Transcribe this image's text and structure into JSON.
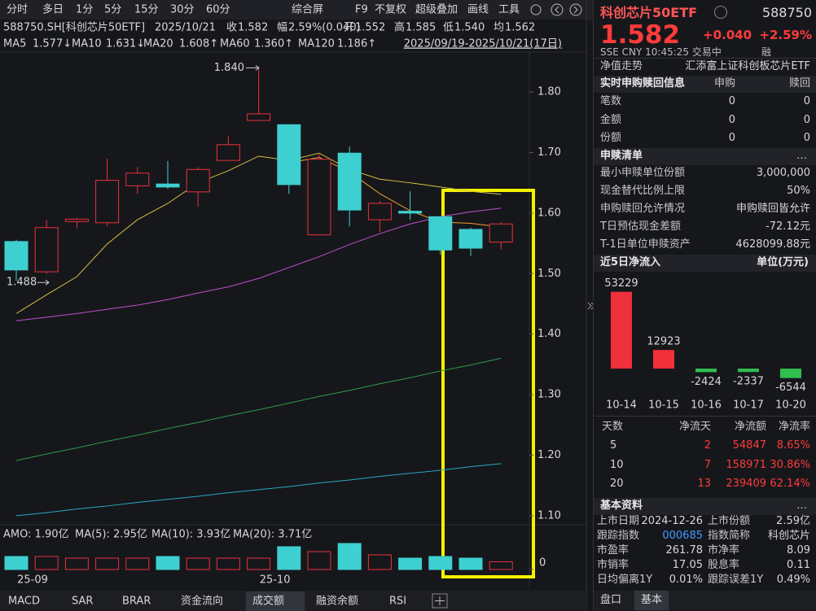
{
  "toolbar": {
    "periods": [
      "分时",
      "多日",
      "1分",
      "5分",
      "15分",
      "30分",
      "60分"
    ],
    "tools": [
      "综合屏",
      "F9",
      "不复权",
      "超级叠加",
      "画线",
      "工具"
    ]
  },
  "quote_line": {
    "symbol": "588750.SH[科创芯片50ETF]",
    "date": "2025/10/21",
    "items": [
      {
        "label": "收",
        "value": "1.582"
      },
      {
        "label": "幅",
        "value": "2.59%(0.040)"
      },
      {
        "label": "开",
        "value": "1.552"
      },
      {
        "label": "高",
        "value": "1.585"
      },
      {
        "label": "低",
        "value": "1.540"
      },
      {
        "label": "均",
        "value": "1.562"
      }
    ]
  },
  "ma_legend": [
    {
      "name": "MA5",
      "value": "1.577↓"
    },
    {
      "name": "MA10",
      "value": "1.631↓"
    },
    {
      "name": "MA20",
      "value": "1.608↑"
    },
    {
      "name": "MA60",
      "value": "1.360↑"
    },
    {
      "name": "MA120",
      "value": "1.186↑"
    }
  ],
  "range": "2025/09/19-2025/10/21(17日)",
  "chart_data": [
    {
      "type": "candlestick",
      "categories": [
        "25-09",
        null,
        null,
        null,
        null,
        null,
        null,
        null,
        "25-10",
        null,
        null,
        null,
        null,
        null,
        null,
        null,
        null
      ],
      "open": [
        1.553,
        1.503,
        1.586,
        1.584,
        1.645,
        1.648,
        1.635,
        1.687,
        1.753,
        1.746,
        1.564,
        1.699,
        1.589,
        1.603,
        1.594,
        1.573,
        1.552
      ],
      "high": [
        1.556,
        1.589,
        1.592,
        1.69,
        1.676,
        1.686,
        1.676,
        1.727,
        1.84,
        1.746,
        1.697,
        1.71,
        1.62,
        1.636,
        1.594,
        1.576,
        1.585
      ],
      "low": [
        1.488,
        1.5,
        1.575,
        1.578,
        1.632,
        1.64,
        1.611,
        1.687,
        1.753,
        1.632,
        1.564,
        1.578,
        1.569,
        1.589,
        1.531,
        1.529,
        1.54
      ],
      "close": [
        1.506,
        1.576,
        1.59,
        1.654,
        1.666,
        1.643,
        1.672,
        1.713,
        1.764,
        1.647,
        1.689,
        1.605,
        1.616,
        1.6,
        1.539,
        1.542,
        1.582
      ],
      "up_color": "#e8323c",
      "down_color": "#3ecfd0",
      "ma": [
        {
          "name": "MA5",
          "color": "#f0a030",
          "values": [
            null,
            null,
            null,
            null,
            null,
            null,
            null,
            null,
            null,
            1.683,
            1.692,
            1.668,
            1.632,
            1.604,
            1.585,
            1.583,
            1.577
          ]
        },
        {
          "name": "MA10",
          "color": "#d6c040",
          "values": [
            1.434,
            1.465,
            1.495,
            1.549,
            1.589,
            1.616,
            1.65,
            1.67,
            1.694,
            1.687,
            1.699,
            1.672,
            1.656,
            1.65,
            1.643,
            1.636,
            1.631
          ]
        },
        {
          "name": "MA20",
          "color": "#c050d0",
          "values": [
            1.422,
            1.428,
            1.434,
            1.441,
            1.448,
            1.457,
            1.468,
            1.478,
            1.492,
            1.51,
            1.528,
            1.548,
            1.566,
            1.582,
            1.594,
            1.602,
            1.608
          ]
        },
        {
          "name": "MA60",
          "color": "#2e9a4a",
          "values": [
            1.191,
            1.202,
            1.212,
            1.223,
            1.233,
            1.244,
            1.254,
            1.265,
            1.275,
            1.286,
            1.297,
            1.307,
            1.318,
            1.328,
            1.339,
            1.349,
            1.36
          ]
        },
        {
          "name": "MA120",
          "color": "#2aa6c0",
          "values": [
            1.1,
            1.105,
            1.111,
            1.116,
            1.122,
            1.127,
            1.132,
            1.138,
            1.143,
            1.148,
            1.154,
            1.159,
            1.165,
            1.17,
            1.175,
            1.181,
            1.186
          ]
        }
      ],
      "ylim": [
        1.085,
        1.866
      ],
      "yticks": [
        {
          "value": 1.1,
          "label": "1.10"
        },
        {
          "value": 1.2,
          "label": "1.20"
        },
        {
          "value": 1.3,
          "label": "1.30"
        },
        {
          "value": 1.4,
          "label": "1.40"
        },
        {
          "value": 1.5,
          "label": "1.50"
        },
        {
          "value": 1.6,
          "label": "1.60"
        },
        {
          "value": 1.7,
          "label": "1.70"
        },
        {
          "value": 1.8,
          "label": "1.80"
        }
      ],
      "annotations": [
        {
          "text": "1.840",
          "value": 1.84
        },
        {
          "text": "1.488",
          "value": 1.488
        }
      ],
      "volume": {
        "legend": [
          {
            "text": "AMO: 1.90亿",
            "color": "#e0e0e0"
          },
          {
            "text": "MA(5): 2.95亿",
            "color": "#e0e0e0"
          },
          {
            "text": "MA(10): 3.93亿",
            "color": "#f0a030"
          },
          {
            "text": "MA(20): 3.71亿",
            "color": "#c050d0"
          }
        ],
        "values": [
          3.2,
          3.2,
          2.8,
          2.8,
          2.8,
          3.2,
          2.8,
          2.8,
          2.8,
          5.6,
          4.4,
          6.4,
          3.6,
          2.8,
          3.2,
          2.8,
          1.9
        ],
        "ylim": [
          0,
          8
        ],
        "yticks": [
          0
        ]
      }
    },
    {
      "type": "bar",
      "title": "近5日净流入",
      "unit": "单位(万元)",
      "categories": [
        "10-14",
        "10-15",
        "10-16",
        "10-17",
        "10-20"
      ],
      "values": [
        53229,
        12923,
        -2424,
        -2337,
        -6544
      ],
      "pos_color": "#f0303a",
      "neg_color": "#2fc050",
      "ylim": [
        -18000,
        66000
      ]
    }
  ],
  "bottom_tabs": [
    "MACD",
    "SAR",
    "BRAR",
    "资金流向",
    "成交额",
    "融资余额",
    "RSI"
  ],
  "panel": {
    "name": "科创芯片50ETF",
    "code": "588750",
    "price": "1.582",
    "change": "+0.040",
    "pct": "+2.59%",
    "meta": "SSE  CNY  10:45:25  交易中",
    "badge": "融",
    "nav": {
      "label": "净值走势",
      "value": "汇添富上证科创板芯片ETF"
    },
    "realtime": {
      "title": "实时申购赎回信息",
      "cols": [
        "申购",
        "赎回"
      ],
      "rows": [
        [
          "笔数",
          "0",
          "0"
        ],
        [
          "金额",
          "0",
          "0"
        ],
        [
          "份额",
          "0",
          "0"
        ]
      ]
    },
    "list": {
      "title": "申赎清单",
      "more": "…",
      "rows": [
        [
          "最小申赎单位份额",
          "3,000,000"
        ],
        [
          "现金替代比例上限",
          "50%"
        ],
        [
          "申购赎回允许情况",
          "申购赎回皆允许"
        ],
        [
          "T日预估现金差额",
          "-72.12元"
        ],
        [
          "T-1日单位申赎资产",
          "4628099.88元"
        ]
      ]
    },
    "flow": {
      "header": [
        "天数",
        "净流天",
        "净流额",
        "净流率"
      ],
      "rows": [
        [
          "5",
          "2",
          "54847",
          "8.65%"
        ],
        [
          "10",
          "7",
          "158971",
          "30.86%"
        ],
        [
          "20",
          "13",
          "239409",
          "62.14%"
        ]
      ]
    },
    "basic": {
      "title": "基本资料",
      "more": "…",
      "rows": [
        [
          "上市日期",
          "2024-12-26",
          "上市份额",
          "2.59亿"
        ],
        [
          "跟踪指数",
          "000685",
          "指数简称",
          "科创芯片"
        ],
        [
          "市盈率",
          "261.78",
          "市净率",
          "8.09"
        ],
        [
          "市销率",
          "17.05",
          "股息率",
          "0.11"
        ],
        [
          "日均偏离1Y",
          "0.01%",
          "跟踪误差1Y",
          "0.49%"
        ]
      ]
    },
    "tabs": [
      "盘口",
      "基本"
    ]
  }
}
